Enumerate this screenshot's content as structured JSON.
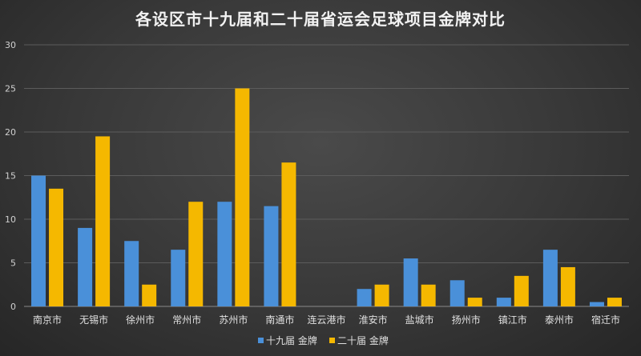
{
  "chart_data": {
    "type": "bar",
    "title": "各设区市十九届和二十届省运会足球项目金牌对比",
    "xlabel": "",
    "ylabel": "",
    "ylim": [
      0,
      30
    ],
    "yticks": [
      0,
      5,
      10,
      15,
      20,
      25,
      30
    ],
    "grid": true,
    "legend_position": "bottom",
    "categories": [
      "南京市",
      "无锡市",
      "徐州市",
      "常州市",
      "苏州市",
      "南通市",
      "连云港市",
      "淮安市",
      "盐城市",
      "扬州市",
      "镇江市",
      "泰州市",
      "宿迁市"
    ],
    "series": [
      {
        "name": "十九届 金牌",
        "color": "#4a90d9",
        "values": [
          15,
          9,
          7.5,
          6.5,
          12,
          11.5,
          0,
          2,
          5.5,
          3,
          1,
          6.5,
          0.5
        ]
      },
      {
        "name": "二十届 金牌",
        "color": "#f5b800",
        "values": [
          13.5,
          19.5,
          2.5,
          12,
          25,
          16.5,
          0,
          2.5,
          2.5,
          1,
          3.5,
          4.5,
          1
        ]
      }
    ]
  }
}
